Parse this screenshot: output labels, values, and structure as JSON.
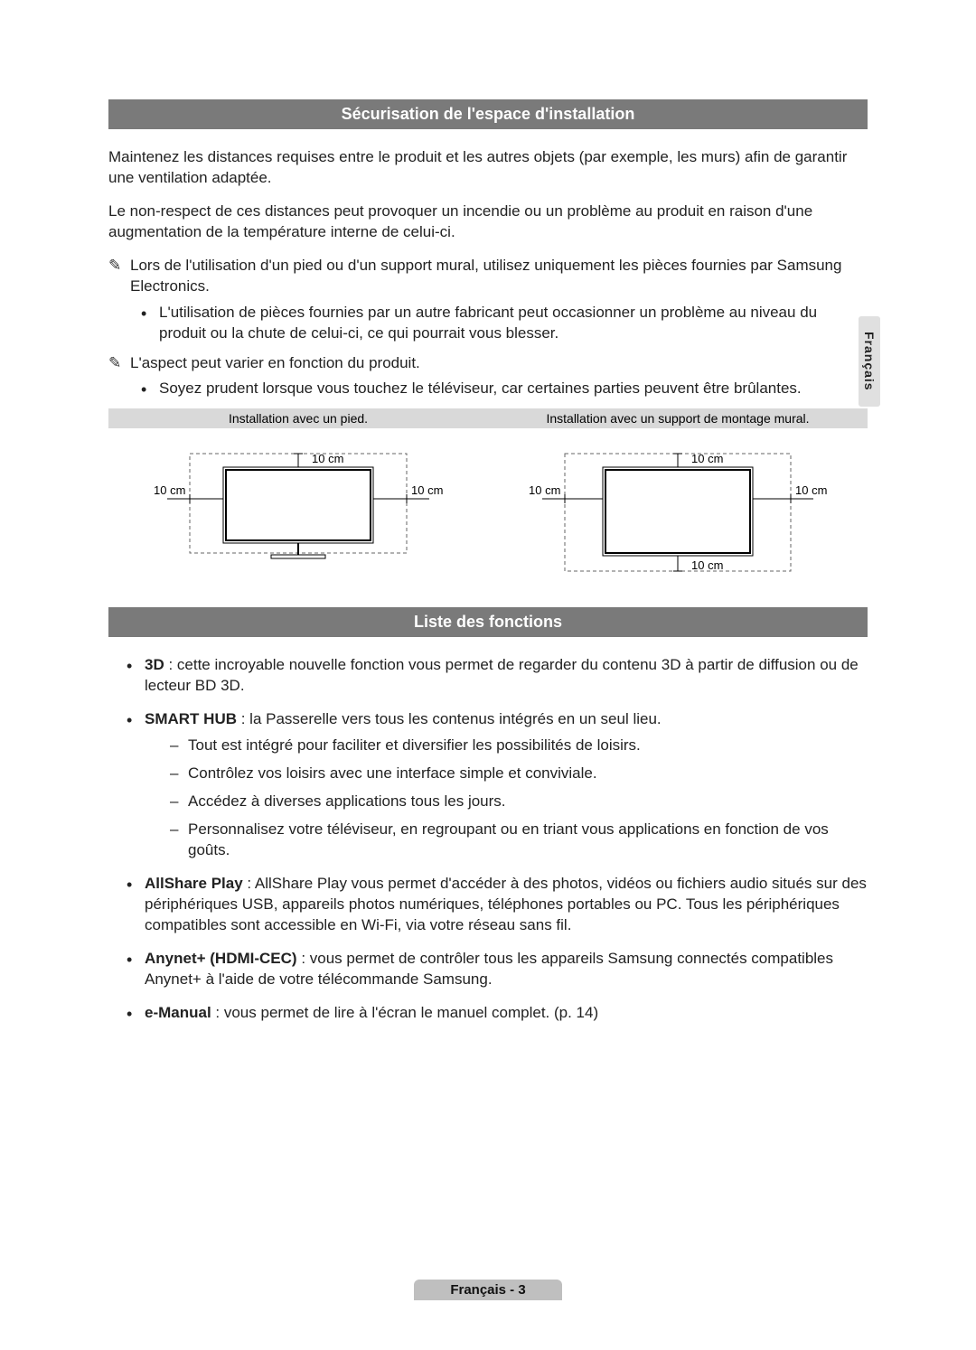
{
  "side_tab": "Français",
  "section1": {
    "title": "Sécurisation de l'espace d'installation",
    "p1": "Maintenez les distances requises entre le produit et les autres objets (par exemple, les murs) afin de garantir une ventilation adaptée.",
    "p2": "Le non-respect de ces distances peut provoquer un incendie ou un problème au produit en raison d'une augmentation de la température interne de celui-ci.",
    "note1": "Lors de l'utilisation d'un pied ou d'un support mural, utilisez uniquement les pièces fournies par Samsung Electronics.",
    "note1_sub": "L'utilisation de pièces fournies par un autre fabricant peut occasionner un problème au niveau du produit ou la chute de celui-ci, ce qui pourrait vous blesser.",
    "note2": "L'aspect peut varier en fonction du produit.",
    "note2_sub": "Soyez prudent lorsque vous touchez le téléviseur, car certaines parties peuvent être brûlantes."
  },
  "diagrams": {
    "left_caption": "Installation avec un pied.",
    "right_caption": "Installation avec un support de montage mural.",
    "dim_top": "10 cm",
    "dim_left": "10 cm",
    "dim_right": "10 cm",
    "dim_bottom": "10 cm",
    "colors": {
      "caption_bg": "#d9d9d9",
      "stroke": "#000000",
      "dash": "#666666"
    },
    "font_size": 13
  },
  "section2": {
    "title": "Liste des fonctions",
    "items": [
      {
        "label": "3D",
        "text": " : cette incroyable nouvelle fonction vous permet de regarder du contenu 3D à partir de diffusion ou de lecteur BD 3D."
      },
      {
        "label": "SMART HUB",
        "text": " : la Passerelle vers tous les contenus intégrés en un seul lieu.",
        "subs": [
          "Tout est intégré pour faciliter et diversifier les possibilités de loisirs.",
          "Contrôlez vos loisirs avec une interface simple et conviviale.",
          "Accédez à diverses applications tous les jours.",
          "Personnalisez votre téléviseur, en regroupant ou en triant vous applications en fonction de vos goûts."
        ]
      },
      {
        "label": "AllShare Play",
        "text": " : AllShare Play vous permet d'accéder à des photos, vidéos ou fichiers audio situés sur des périphériques USB, appareils photos numériques, téléphones portables ou PC. Tous les périphériques compatibles sont accessible en Wi-Fi, via votre réseau sans fil."
      },
      {
        "label": "Anynet+ (HDMI-CEC)",
        "text": " : vous permet de contrôler tous les appareils Samsung connectés compatibles Anynet+ à l'aide de votre télécommande Samsung."
      },
      {
        "label": "e-Manual",
        "text": " : vous permet de lire à l'écran le manuel complet. (p. 14)"
      }
    ]
  },
  "footer": "Français - 3"
}
